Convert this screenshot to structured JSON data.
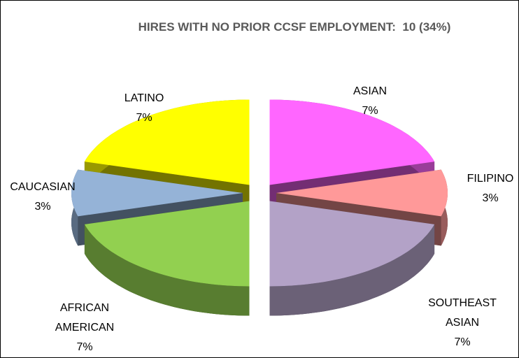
{
  "chart_data": {
    "type": "pie",
    "title": "HIRES WITH NO PRIOR CCSF EMPLOYMENT:  10 (34%)",
    "categories": [
      "ASIAN",
      "FILIPINO",
      "SOUTHEAST ASIAN",
      "AFRICAN AMERICAN",
      "CAUCASIAN",
      "LATINO"
    ],
    "values": [
      7,
      3,
      7,
      7,
      3,
      7
    ],
    "value_labels": [
      "7%",
      "3%",
      "7%",
      "7%",
      "3%",
      "7%"
    ],
    "colors": [
      "#ff66ff",
      "#ff9999",
      "#b3a2c7",
      "#92d050",
      "#95b3d7",
      "#ffff00"
    ]
  }
}
